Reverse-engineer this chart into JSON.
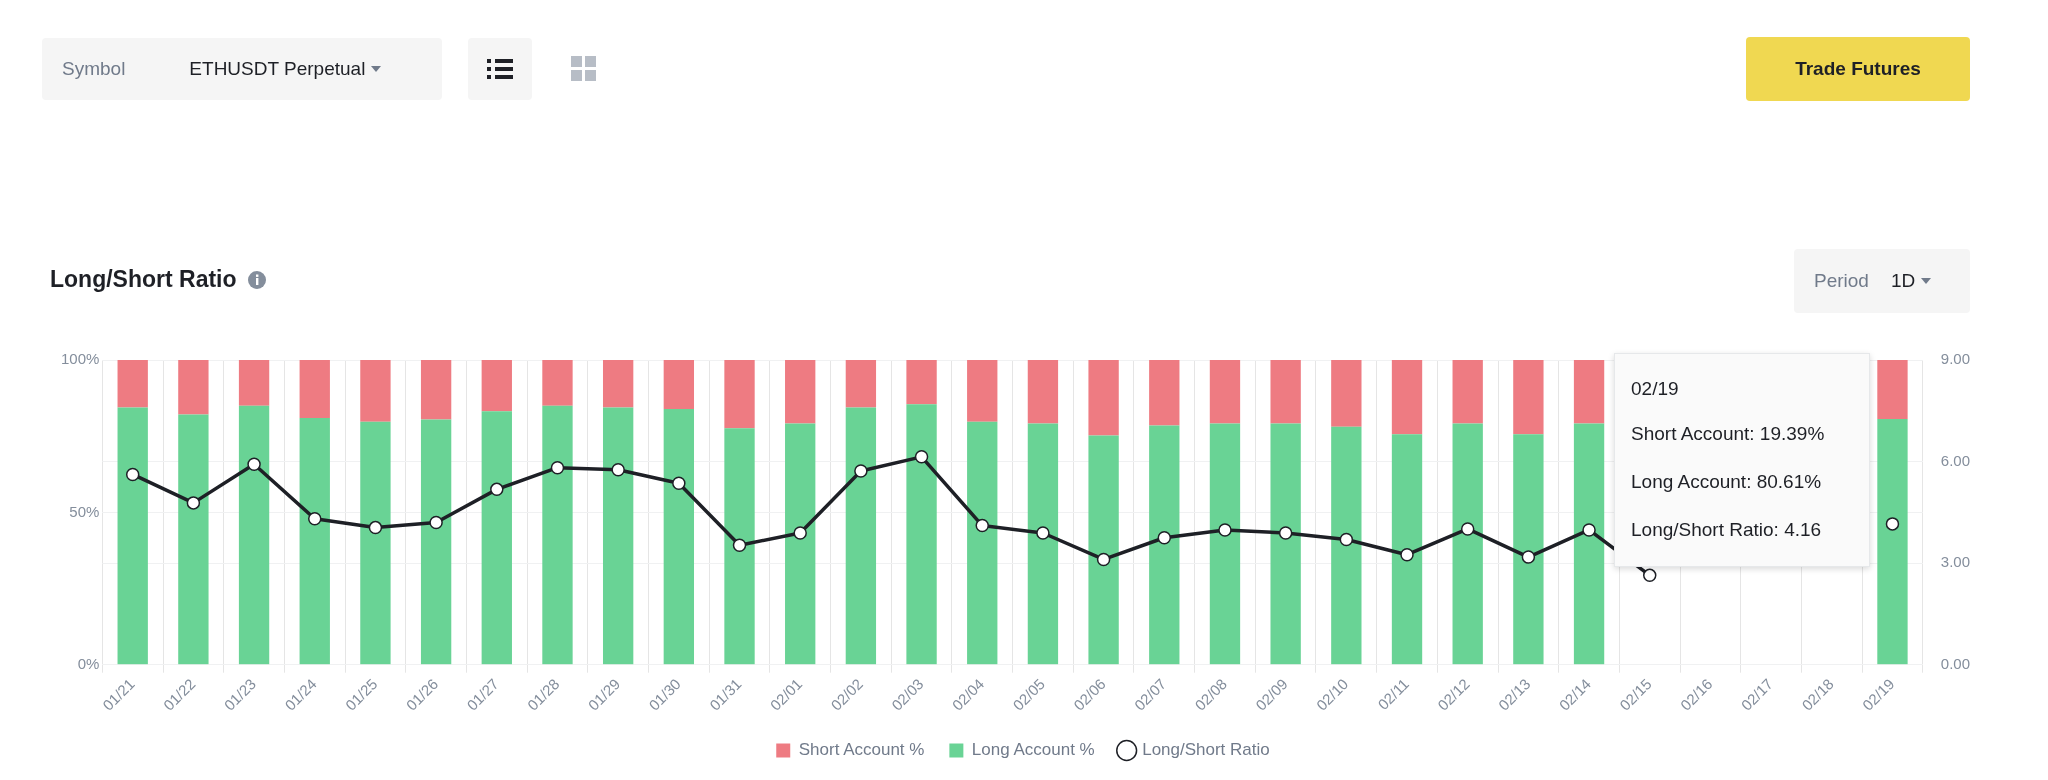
{
  "chart_data": {
    "type": "bar",
    "title": "Long/Short Ratio",
    "categories": [
      "01/21",
      "01/22",
      "01/23",
      "01/24",
      "01/25",
      "01/26",
      "01/27",
      "01/28",
      "01/29",
      "01/30",
      "01/31",
      "02/01",
      "02/02",
      "02/03",
      "02/04",
      "02/05",
      "02/06",
      "02/07",
      "02/08",
      "02/09",
      "02/10",
      "02/11",
      "02/12",
      "02/13",
      "02/14",
      "02/15",
      "02/16",
      "02/17",
      "02/18",
      "02/19"
    ],
    "stacked": true,
    "series": [
      {
        "name": "Long Account %",
        "color": "#69d395",
        "values": [
          84.4,
          82.1,
          85.0,
          81.0,
          79.7,
          80.5,
          83.2,
          85.0,
          84.4,
          83.9,
          77.6,
          79.2,
          84.4,
          85.5,
          79.7,
          79.2,
          75.2,
          78.5,
          79.2,
          79.2,
          78.1,
          75.6,
          79.2,
          75.6,
          79.2,
          null,
          null,
          null,
          null,
          80.61
        ]
      },
      {
        "name": "Short Account %",
        "color": "#ee7b82",
        "values": [
          15.6,
          17.9,
          15.0,
          19.0,
          20.3,
          19.5,
          16.8,
          15.0,
          15.6,
          16.1,
          22.4,
          20.8,
          15.6,
          14.5,
          20.3,
          20.8,
          24.8,
          21.5,
          20.8,
          20.8,
          21.9,
          24.4,
          20.8,
          24.4,
          20.8,
          null,
          null,
          null,
          null,
          19.39
        ]
      },
      {
        "name": "Long/Short Ratio",
        "type": "line",
        "axis": "y2",
        "color": "#1e2026",
        "values": [
          5.62,
          4.78,
          5.92,
          4.31,
          4.05,
          4.2,
          5.18,
          5.82,
          5.76,
          5.36,
          3.53,
          3.89,
          5.72,
          6.14,
          4.11,
          3.89,
          3.11,
          3.75,
          3.98,
          3.89,
          3.7,
          3.25,
          4.01,
          3.18,
          3.98,
          2.64,
          null,
          null,
          null,
          4.16
        ]
      }
    ],
    "ylim": [
      0,
      100
    ],
    "yticks": [
      {
        "value": 0,
        "label": "0%"
      },
      {
        "value": 50,
        "label": "50%"
      },
      {
        "value": 100,
        "label": "100%"
      }
    ],
    "y2lim": [
      0,
      9
    ],
    "y2ticks": [
      {
        "value": 0,
        "label": "0.00"
      },
      {
        "value": 3,
        "label": "3.00"
      },
      {
        "value": 6,
        "label": "6.00"
      },
      {
        "value": 9,
        "label": "9.00"
      }
    ],
    "grid": true,
    "legend": "bottom",
    "marker": "circle",
    "line_style": "solid",
    "annotations": [
      "Symbol",
      "ETHUSDT Perpetual",
      "Trade Futures",
      "Period",
      "1D",
      "02/19",
      "Short Account: 19.39%",
      "Long Account: 80.61%",
      "Long/Short Ratio: 4.16"
    ]
  }
}
